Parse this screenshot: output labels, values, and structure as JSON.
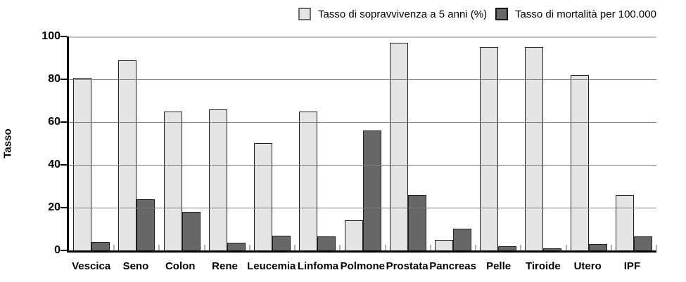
{
  "chart_data": {
    "type": "bar",
    "title": "",
    "ylabel": "Tasso",
    "categories": [
      "Vescica",
      "Seno",
      "Colon",
      "Rene",
      "Leucemia",
      "Linfoma",
      "Polmone",
      "Prostata",
      "Pancreas",
      "Pelle",
      "Tiroide",
      "Utero",
      "IPF"
    ],
    "series": [
      {
        "name": "Tasso di sopravvivenza a 5 anni (%)",
        "color": "#e4e4e4",
        "values": [
          80.5,
          89,
          65,
          66,
          50,
          65,
          14,
          97,
          5,
          95,
          95,
          82,
          26
        ]
      },
      {
        "name": "Tasso di mortalità per 100.000",
        "color": "#676767",
        "values": [
          4,
          24,
          18,
          3.5,
          7,
          6.5,
          56,
          26,
          10,
          2,
          1,
          3,
          6.5
        ]
      }
    ],
    "ylim": [
      0,
      100
    ],
    "yticks": [
      0,
      20,
      40,
      60,
      80,
      100
    ],
    "grid": true,
    "legend_position": "top",
    "colors": {
      "gridline": "#7d7d7d",
      "gridline_top": "#c0c0c0",
      "axis": "#000000",
      "boundary_tick": "#b3b3b3",
      "background": "#ffffff"
    }
  }
}
